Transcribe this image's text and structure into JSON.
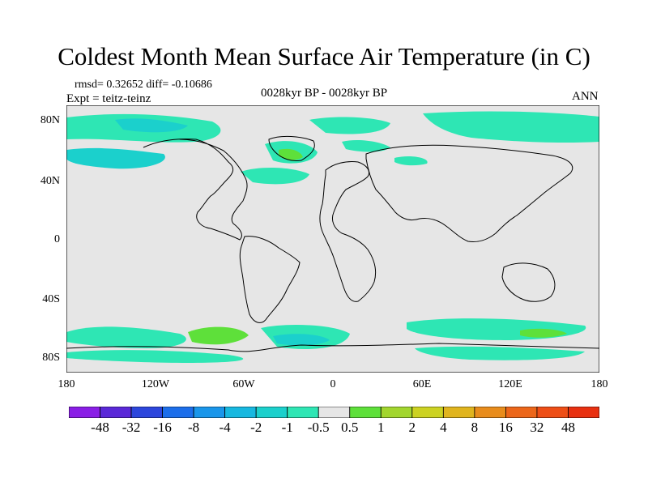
{
  "title": "Coldest Month Mean Surface Air Temperature (in C)",
  "stats": "rmsd= 0.32652 diff= -0.10686",
  "experiment": "Expt = teitz-teinz",
  "period": "0028kyr BP - 0028kyr BP",
  "season": "ANN",
  "axes": {
    "y_ticks": [
      "80N",
      "40N",
      "0",
      "40S",
      "80S"
    ],
    "x_ticks": [
      "180",
      "120W",
      "60W",
      "0",
      "60E",
      "120E",
      "180"
    ]
  },
  "colorbar": {
    "labels": [
      "-48",
      "-32",
      "-16",
      "-8",
      "-4",
      "-2",
      "-1",
      "-0.5",
      "0.5",
      "1",
      "2",
      "4",
      "8",
      "16",
      "32",
      "48"
    ],
    "colors": [
      "#8a1ee6",
      "#5a28d8",
      "#2c46dc",
      "#1c6eea",
      "#1a96ea",
      "#17b8e0",
      "#1bd0cc",
      "#2ee6b4",
      "#e6e6e6",
      "#5ee03a",
      "#a2d62e",
      "#ccd222",
      "#e0b41e",
      "#e88c1c",
      "#ec661a",
      "#ee4e16",
      "#e83010"
    ]
  },
  "palette": {
    "ocean_background": "#e6e6e6",
    "coastline": "#000000"
  }
}
